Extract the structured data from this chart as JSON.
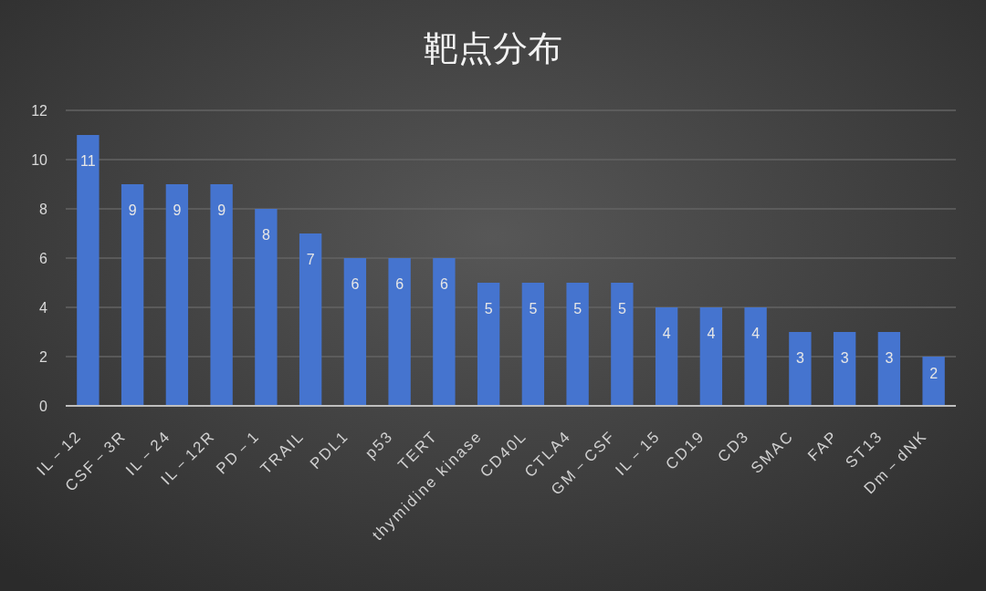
{
  "chart_data": {
    "type": "bar",
    "title": "靶点分布",
    "categories": [
      "IL－12",
      "CSF－3R",
      "IL－24",
      "IL－12R",
      "PD－1",
      "TRAIL",
      "PDL1",
      "p53",
      "TERT",
      "thymidine kinase",
      "CD40L",
      "CTLA4",
      "GM－CSF",
      "IL－15",
      "CD19",
      "CD3",
      "SMAC",
      "FAP",
      "ST13",
      "Dm－dNK"
    ],
    "values": [
      11,
      9,
      9,
      9,
      8,
      7,
      6,
      6,
      6,
      5,
      5,
      5,
      5,
      4,
      4,
      4,
      3,
      3,
      3,
      2
    ],
    "color": "#4574cf",
    "ylim": [
      0,
      12
    ],
    "yticks": [
      0,
      2,
      4,
      6,
      8,
      10,
      12
    ],
    "grid": "y",
    "data_labels": true
  }
}
